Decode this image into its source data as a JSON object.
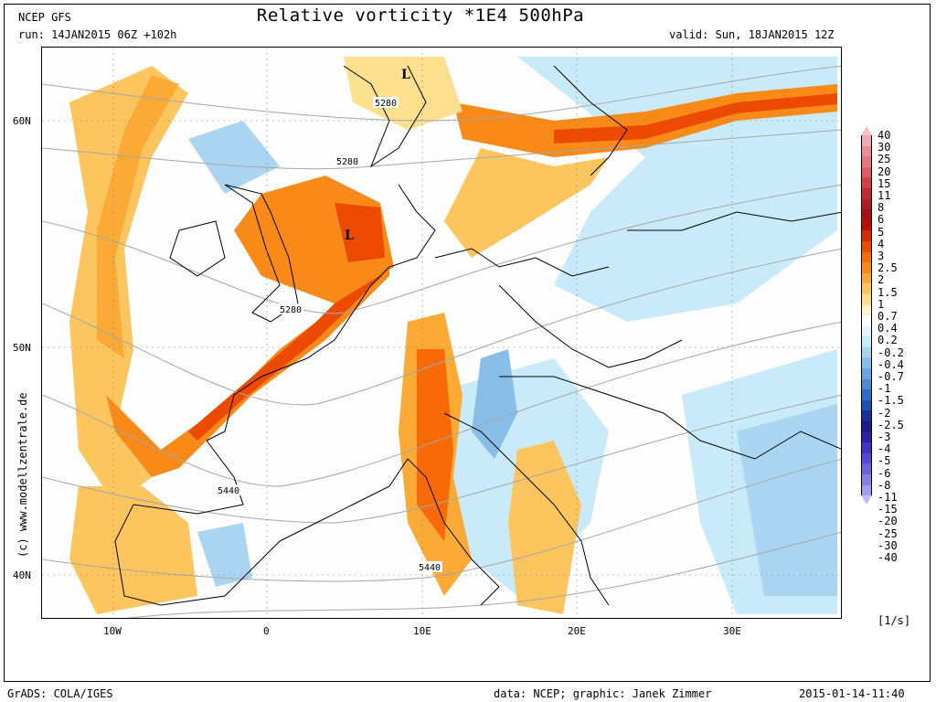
{
  "header": {
    "model": "NCEP GFS",
    "run": "run: 14JAN2015 06Z +102h",
    "title": "Relative vorticity *1E4 500hPa",
    "valid": "valid: Sun, 18JAN2015 12Z"
  },
  "axes": {
    "lon_ticks": [
      "10W",
      "0",
      "10E",
      "20E",
      "30E"
    ],
    "lat_ticks": [
      "60N",
      "50N",
      "40N"
    ]
  },
  "credit_vertical": "(c) www.modellzentrale.de",
  "map_labels": {
    "contours": [
      "5280",
      "5280",
      "5280",
      "5440",
      "5440"
    ],
    "lows": [
      "L",
      "L"
    ]
  },
  "colorbar": {
    "unit": "[1/s]",
    "entries": [
      {
        "label": "40",
        "color": "#f4c2c8"
      },
      {
        "label": "30",
        "color": "#f0a9b0"
      },
      {
        "label": "25",
        "color": "#ec8f98"
      },
      {
        "label": "20",
        "color": "#e57580"
      },
      {
        "label": "15",
        "color": "#dd5b66"
      },
      {
        "label": "11",
        "color": "#d4404c"
      },
      {
        "label": "8",
        "color": "#c52a34"
      },
      {
        "label": "6",
        "color": "#b51a22"
      },
      {
        "label": "5",
        "color": "#a50f15"
      },
      {
        "label": "4",
        "color": "#b81004"
      },
      {
        "label": "3",
        "color": "#d42c02"
      },
      {
        "label": "2.5",
        "color": "#ec4a00"
      },
      {
        "label": "2",
        "color": "#f86a05"
      },
      {
        "label": "1.5",
        "color": "#fa8a18"
      },
      {
        "label": "1",
        "color": "#fbaa35"
      },
      {
        "label": "0.7",
        "color": "#fcc55e"
      },
      {
        "label": "0.4",
        "color": "#fde08f"
      },
      {
        "label": "0.2",
        "color": "#fef3c4"
      },
      {
        "label": "-0.2",
        "color": "#ffffff"
      },
      {
        "label": "-0.4",
        "color": "#e3f5fb"
      },
      {
        "label": "-0.7",
        "color": "#c9eaf8"
      },
      {
        "label": "-1",
        "color": "#a9d5f1"
      },
      {
        "label": "-1.5",
        "color": "#88bde8"
      },
      {
        "label": "-2",
        "color": "#6aa5df"
      },
      {
        "label": "-2.5",
        "color": "#4a8bd4"
      },
      {
        "label": "-3",
        "color": "#2e6ec6"
      },
      {
        "label": "-4",
        "color": "#1d50b4"
      },
      {
        "label": "-5",
        "color": "#1a2f9c"
      },
      {
        "label": "-6",
        "color": "#1f1a86"
      },
      {
        "label": "-8",
        "color": "#2d22a6"
      },
      {
        "label": "-11",
        "color": "#3d33c4"
      },
      {
        "label": "-15",
        "color": "#5448d4"
      },
      {
        "label": "-20",
        "color": "#6e63dd"
      },
      {
        "label": "-25",
        "color": "#8a80e4"
      },
      {
        "label": "-30",
        "color": "#a69eec"
      },
      {
        "label": "-40",
        "color": "#c2bcf2"
      }
    ]
  },
  "footer": {
    "left": "GrADS: COLA/IGES",
    "center": "data: NCEP; graphic: Janek Zimmer",
    "right": "2015-01-14-11:40"
  }
}
